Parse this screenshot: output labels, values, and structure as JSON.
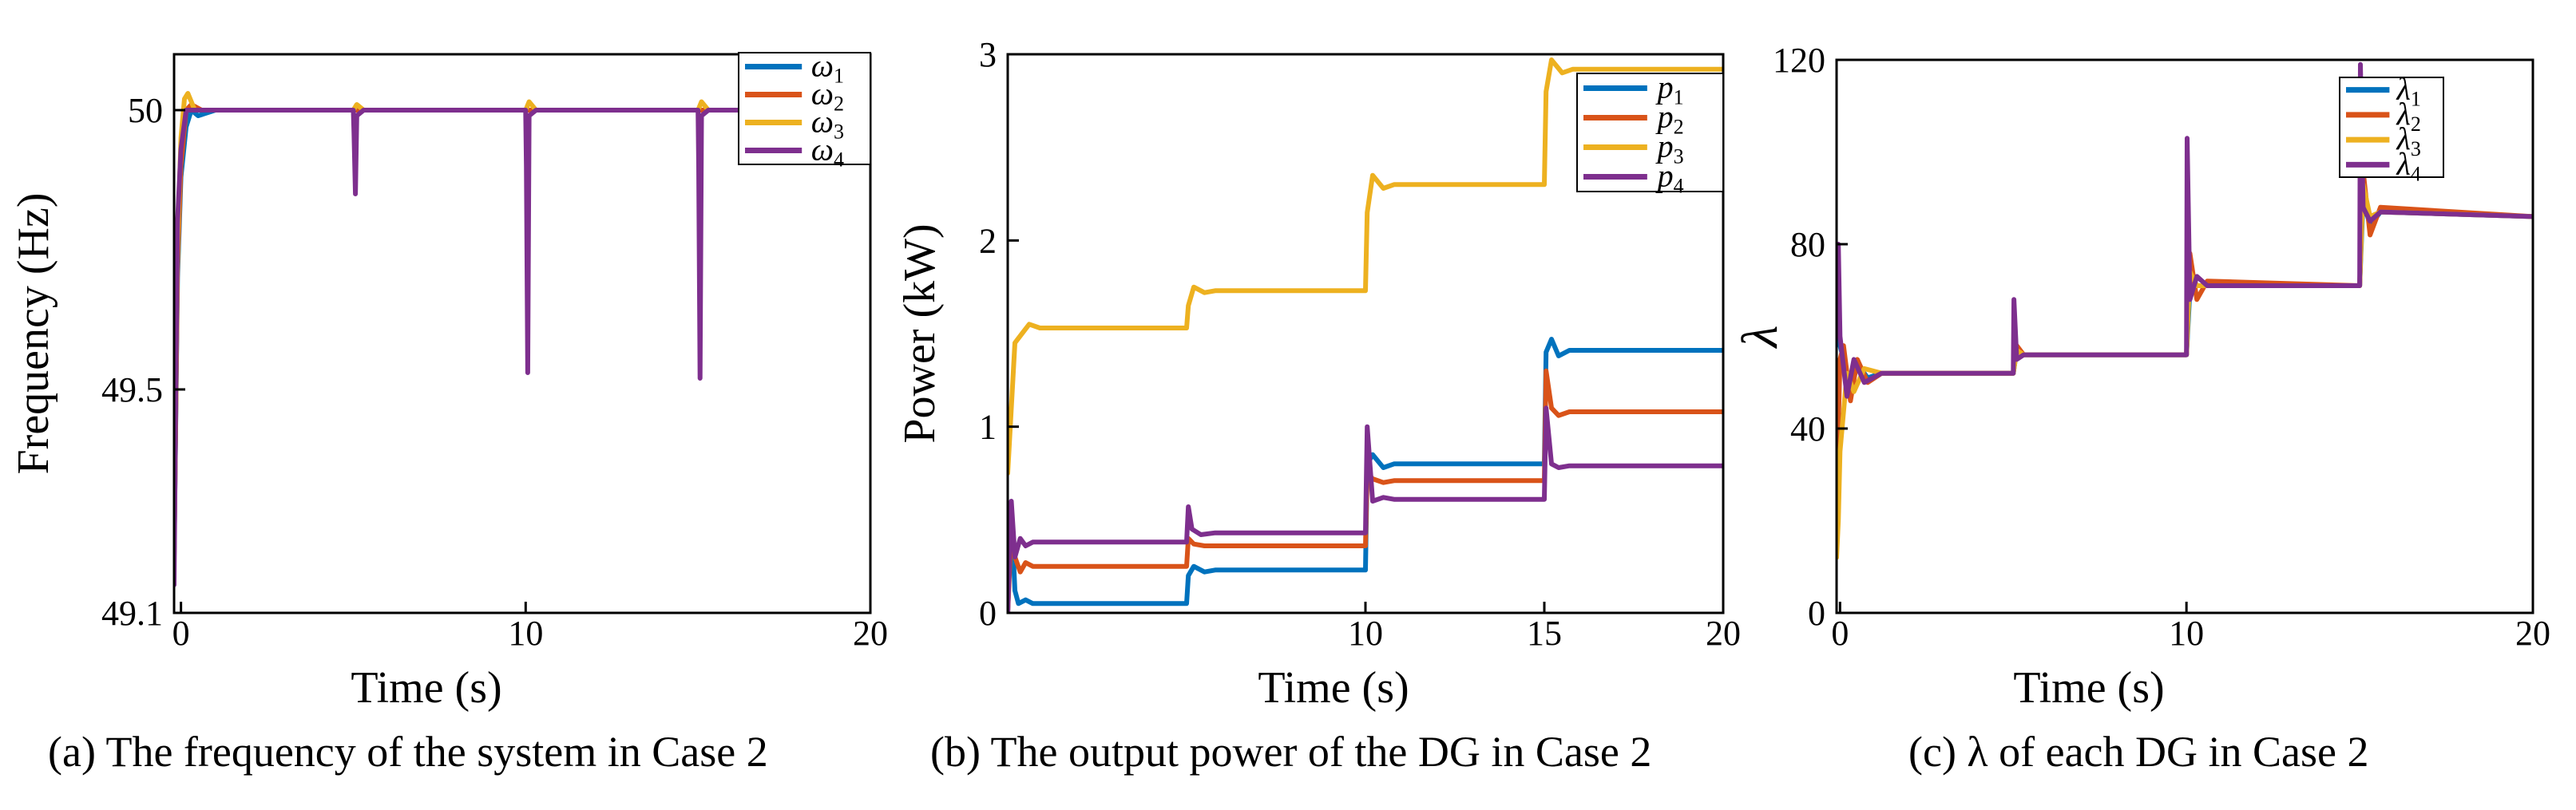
{
  "colors": {
    "s1": "#0072BD",
    "s2": "#D95319",
    "s3": "#EDB120",
    "s4": "#7E2F8E"
  },
  "chart_data": [
    {
      "type": "line",
      "title": "",
      "caption": "(a) The frequency of the system in Case 2",
      "xlabel": "Time (s)",
      "ylabel": "Frequency (Hz)",
      "xlim": [
        -0.2,
        20
      ],
      "ylim": [
        49.1,
        50.1
      ],
      "xticks": [
        0,
        10,
        20
      ],
      "xtick_labels": [
        "0",
        "10",
        "20"
      ],
      "yticks": [
        49.1,
        49.5,
        50
      ],
      "ytick_labels": [
        "49.1",
        "49.5",
        "50"
      ],
      "legend_position": "top-right",
      "series": [
        {
          "name": "ω1",
          "legend_main": "ω",
          "legend_sub": "1",
          "color_key": "s1",
          "x": [
            -0.2,
            -0.1,
            0,
            0.15,
            0.3,
            0.5,
            1,
            20
          ],
          "y": [
            49.2,
            49.7,
            49.88,
            49.97,
            50.0,
            49.99,
            50.0,
            50.0
          ]
        },
        {
          "name": "ω2",
          "legend_main": "ω",
          "legend_sub": "2",
          "color_key": "s2",
          "x": [
            -0.2,
            -0.1,
            0,
            0.15,
            0.3,
            0.6,
            1,
            20
          ],
          "y": [
            49.2,
            49.72,
            49.9,
            50.0,
            50.01,
            50.0,
            50.0,
            50.0
          ]
        },
        {
          "name": "ω3",
          "legend_main": "ω",
          "legend_sub": "3",
          "color_key": "s3",
          "x": [
            -0.2,
            -0.1,
            0,
            0.1,
            0.2,
            0.4,
            0.8,
            5,
            5.1,
            5.3,
            10,
            10.1,
            10.3,
            15,
            15.1,
            15.3,
            20
          ],
          "y": [
            49.2,
            49.75,
            49.95,
            50.02,
            50.03,
            50.0,
            50.0,
            50.0,
            50.01,
            50.0,
            50.0,
            50.015,
            50.0,
            50.0,
            50.015,
            50.0,
            50.0
          ]
        },
        {
          "name": "ω4",
          "legend_main": "ω",
          "legend_sub": "4",
          "color_key": "s4",
          "x": [
            -0.2,
            -0.15,
            -0.1,
            0,
            0.15,
            0.3,
            0.5,
            5,
            5.02,
            5.06,
            5.1,
            5.3,
            10,
            10.02,
            10.06,
            10.1,
            10.3,
            15,
            15.02,
            15.06,
            15.1,
            15.3,
            20
          ],
          "y": [
            49.15,
            49.5,
            49.8,
            49.93,
            50.0,
            50.0,
            50.0,
            50.0,
            49.96,
            49.85,
            49.99,
            50.0,
            50.0,
            49.9,
            49.53,
            49.99,
            50.0,
            50.0,
            49.9,
            49.52,
            49.99,
            50.0,
            50.0
          ]
        }
      ]
    },
    {
      "type": "line",
      "title": "",
      "caption": "(b) The output power of the DG in Case 2",
      "xlabel": "Time (s)",
      "ylabel": "Power (kW)",
      "xlim": [
        0,
        20
      ],
      "ylim": [
        0,
        3
      ],
      "xticks": [
        10,
        15,
        20
      ],
      "xtick_labels": [
        "10",
        "15",
        "20"
      ],
      "yticks": [
        0,
        1,
        2,
        3
      ],
      "ytick_labels": [
        "0",
        "1",
        "2",
        "3"
      ],
      "legend_position": "top-right",
      "series": [
        {
          "name": "p1",
          "legend_main": "p",
          "legend_sub": "1",
          "color_key": "s1",
          "x": [
            0,
            0.1,
            0.2,
            0.3,
            0.5,
            0.7,
            5,
            5.05,
            5.2,
            5.5,
            5.8,
            10,
            10.05,
            10.2,
            10.5,
            10.8,
            15,
            15.05,
            15.2,
            15.4,
            15.7,
            20
          ],
          "y": [
            0.0,
            0.55,
            0.12,
            0.05,
            0.07,
            0.05,
            0.05,
            0.2,
            0.25,
            0.22,
            0.23,
            0.23,
            0.8,
            0.85,
            0.78,
            0.8,
            0.8,
            1.4,
            1.47,
            1.38,
            1.41,
            1.41
          ]
        },
        {
          "name": "p2",
          "legend_main": "p",
          "legend_sub": "2",
          "color_key": "s2",
          "x": [
            0,
            0.1,
            0.2,
            0.35,
            0.5,
            0.7,
            5,
            5.05,
            5.2,
            5.5,
            5.8,
            10,
            10.05,
            10.2,
            10.5,
            10.8,
            15,
            15.05,
            15.2,
            15.4,
            15.7,
            20
          ],
          "y": [
            0.0,
            0.45,
            0.3,
            0.22,
            0.27,
            0.25,
            0.25,
            0.4,
            0.37,
            0.36,
            0.36,
            0.36,
            0.75,
            0.72,
            0.7,
            0.71,
            0.71,
            1.3,
            1.1,
            1.06,
            1.08,
            1.08
          ]
        },
        {
          "name": "p3",
          "legend_main": "p",
          "legend_sub": "3",
          "color_key": "s3",
          "x": [
            0,
            0.1,
            0.2,
            0.4,
            0.6,
            0.9,
            5,
            5.05,
            5.2,
            5.5,
            5.8,
            10,
            10.05,
            10.2,
            10.5,
            10.8,
            15,
            15.05,
            15.2,
            15.5,
            15.8,
            20
          ],
          "y": [
            0.75,
            1.1,
            1.45,
            1.5,
            1.55,
            1.53,
            1.53,
            1.65,
            1.75,
            1.72,
            1.73,
            1.73,
            2.15,
            2.35,
            2.28,
            2.3,
            2.3,
            2.8,
            2.97,
            2.9,
            2.92,
            2.92
          ]
        },
        {
          "name": "p4",
          "legend_main": "p",
          "legend_sub": "4",
          "color_key": "s4",
          "x": [
            0,
            0.1,
            0.2,
            0.35,
            0.5,
            0.7,
            5,
            5.05,
            5.15,
            5.4,
            5.8,
            10,
            10.05,
            10.2,
            10.5,
            10.8,
            15,
            15.05,
            15.2,
            15.4,
            15.7,
            20
          ],
          "y": [
            0.0,
            0.6,
            0.3,
            0.4,
            0.36,
            0.38,
            0.38,
            0.57,
            0.45,
            0.42,
            0.43,
            0.43,
            1.0,
            0.6,
            0.62,
            0.61,
            0.61,
            1.1,
            0.8,
            0.78,
            0.79,
            0.79
          ]
        }
      ]
    },
    {
      "type": "line",
      "title": "",
      "caption": "(c)  λ of each DG in Case 2",
      "xlabel": "Time (s)",
      "ylabel": "λ",
      "xlim": [
        -0.1,
        20
      ],
      "ylim": [
        0,
        120
      ],
      "xticks": [
        0,
        10,
        20
      ],
      "xtick_labels": [
        "0",
        "10",
        "20"
      ],
      "yticks": [
        0,
        40,
        80,
        120
      ],
      "ytick_labels": [
        "0",
        "40",
        "80",
        "120"
      ],
      "legend_position": "top-right",
      "series": [
        {
          "name": "λ1",
          "legend_main": "λ",
          "legend_sub": "1",
          "color_key": "s1",
          "x": [
            -0.1,
            0,
            0.1,
            0.3,
            0.5,
            0.8,
            1.2,
            5,
            5.1,
            5.3,
            10,
            10.1,
            10.3,
            15,
            15.1,
            15.3,
            15.6,
            20
          ],
          "y": [
            60,
            58,
            55,
            48,
            54,
            51,
            52,
            52,
            57,
            56,
            56,
            70,
            71,
            71,
            90,
            84,
            87,
            86
          ]
        },
        {
          "name": "λ2",
          "legend_main": "λ",
          "legend_sub": "2",
          "color_key": "s2",
          "x": [
            -0.1,
            0,
            0.1,
            0.3,
            0.5,
            0.8,
            1.2,
            5,
            5.1,
            5.3,
            10,
            10.1,
            10.3,
            10.6,
            15,
            15.1,
            15.3,
            15.6,
            20
          ],
          "y": [
            25,
            55,
            58,
            46,
            55,
            50,
            52,
            52,
            58,
            56,
            56,
            78,
            68,
            72,
            71,
            96,
            82,
            88,
            86
          ]
        },
        {
          "name": "λ3",
          "legend_main": "λ",
          "legend_sub": "3",
          "color_key": "s3",
          "x": [
            -0.1,
            -0.05,
            0,
            0.2,
            0.4,
            0.7,
            1.2,
            5,
            5.1,
            5.3,
            10,
            10.1,
            10.3,
            15,
            15.1,
            15.3,
            15.6,
            20
          ],
          "y": [
            12,
            20,
            35,
            52,
            48,
            53,
            52,
            52,
            57,
            56,
            56,
            74,
            71,
            71,
            93,
            86,
            87,
            86
          ]
        },
        {
          "name": "λ4",
          "legend_main": "λ",
          "legend_sub": "4",
          "color_key": "s4",
          "x": [
            -0.1,
            -0.05,
            0,
            0.2,
            0.4,
            0.7,
            1.2,
            5,
            5.02,
            5.1,
            5.3,
            10,
            10.02,
            10.1,
            10.3,
            10.6,
            15,
            15.02,
            15.1,
            15.3,
            15.6,
            20
          ],
          "y": [
            70,
            80,
            60,
            47,
            55,
            50,
            52,
            52,
            68,
            55,
            56,
            56,
            103,
            68,
            73,
            71,
            71,
            119,
            88,
            85,
            87,
            86
          ]
        }
      ]
    }
  ]
}
